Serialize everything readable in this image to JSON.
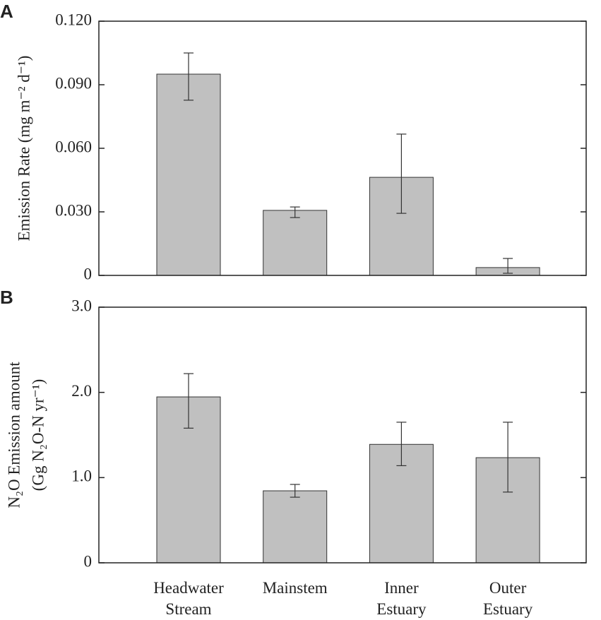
{
  "chart_data": [
    {
      "type": "bar",
      "panel": "A",
      "ylabel": "Emission Rate (mg m⁻² d⁻¹)",
      "series": [
        {
          "color": "#c0c0c0",
          "values": [
            0.095,
            0.0307,
            0.0463,
            0.0037
          ],
          "error_plus": [
            0.01,
            0.0016,
            0.0204,
            0.0043
          ],
          "error_minus": [
            0.0123,
            0.0034,
            0.017,
            0.0027
          ]
        }
      ],
      "ylim": [
        0,
        0.12
      ],
      "yticks": [
        0,
        {
          "value": 0.03,
          "label": "0.030"
        },
        {
          "value": 0.06,
          "label": "0.060"
        },
        {
          "value": 0.09,
          "label": "0.090"
        },
        {
          "value": 0.12,
          "label": "0.120"
        }
      ]
    },
    {
      "type": "bar",
      "panel": "B",
      "ylabel": [
        "N₂O Emission amount",
        "(Gg N₂O-N yr⁻¹)"
      ],
      "categories": [
        "Headwater Stream",
        "Mainstem",
        "Inner Estuary",
        "Outer Estuary"
      ],
      "series": [
        {
          "color": "#c0c0c0",
          "values": [
            1.947,
            0.845,
            1.39,
            1.234
          ],
          "error_plus": [
            0.273,
            0.075,
            0.26,
            0.416
          ],
          "error_minus": [
            0.367,
            0.075,
            0.25,
            0.404
          ]
        }
      ],
      "ylim": [
        0,
        3
      ],
      "yticks": [
        0,
        {
          "value": 1,
          "label": "1.0"
        },
        {
          "value": 2,
          "label": "2.0"
        },
        {
          "value": 3,
          "label": "3.0"
        }
      ]
    }
  ]
}
